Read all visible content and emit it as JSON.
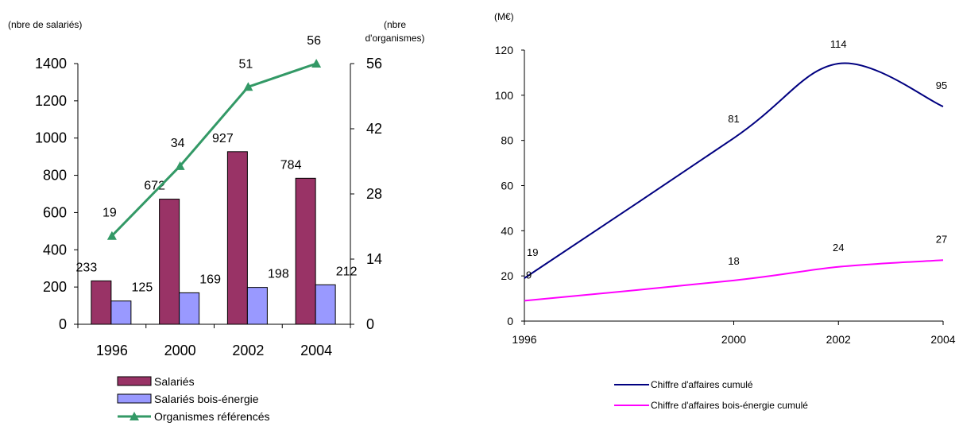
{
  "chart_data": [
    {
      "type": "bar",
      "categories": [
        "1996",
        "2000",
        "2002",
        "2004"
      ],
      "series": [
        {
          "name": "Salariés",
          "values": [
            233,
            672,
            927,
            784
          ],
          "axis": "left",
          "color": "#993366"
        },
        {
          "name": "Salariés bois-énergie",
          "values": [
            125,
            169,
            198,
            212
          ],
          "axis": "left",
          "color": "#9999FF"
        }
      ],
      "line_series": {
        "name": "Organismes référencés",
        "values": [
          19,
          34,
          51,
          56
        ],
        "axis": "right",
        "color": "#339966",
        "marker": "triangle"
      },
      "ylabel_left": "(nbre de salariés)",
      "ylabel_right_1": "(nbre",
      "ylabel_right_2": "d'organismes)",
      "ylim_left": [
        0,
        1400
      ],
      "yticks_left": [
        0,
        200,
        400,
        600,
        800,
        1000,
        1200,
        1400
      ],
      "ylim_right": [
        0,
        56
      ],
      "yticks_right": [
        0,
        14,
        28,
        42,
        56
      ],
      "legend_position": "bottom",
      "grid": false
    },
    {
      "type": "line",
      "x": [
        1996,
        2000,
        2002,
        2004
      ],
      "xticks": [
        "1996",
        "2000",
        "2002",
        "2004"
      ],
      "series": [
        {
          "name": "Chiffre d'affaires cumulé",
          "values": [
            19,
            81,
            114,
            95
          ],
          "color": "#000080"
        },
        {
          "name": "Chiffre d'affaires bois-énergie cumulé",
          "values": [
            9,
            18,
            24,
            27
          ],
          "color": "#FF00FF"
        }
      ],
      "ylabel": "(M€)",
      "ylim": [
        0,
        120
      ],
      "yticks": [
        0,
        20,
        40,
        60,
        80,
        100,
        120
      ],
      "legend_position": "bottom",
      "grid": false
    }
  ]
}
